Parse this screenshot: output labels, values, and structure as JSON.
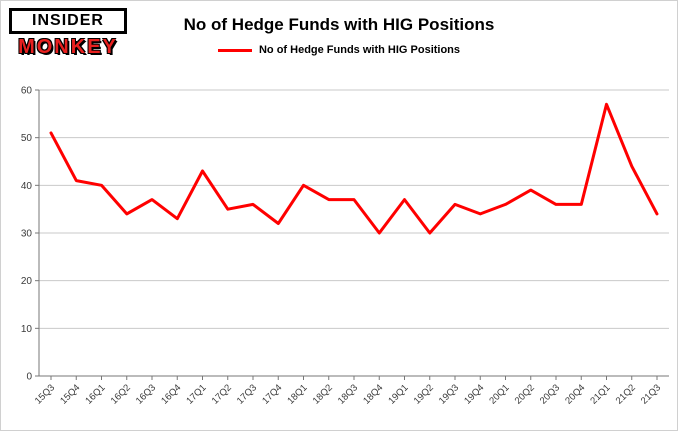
{
  "logo": {
    "line1": "INSIDER",
    "line2": "MONKEY"
  },
  "header": {
    "title": "No of Hedge Funds with HIG Positions"
  },
  "legend": {
    "label": "No of Hedge Funds with HIG Positions"
  },
  "colors": {
    "line": "#ff0000",
    "grid": "#c9c9c9",
    "axis": "#777777",
    "logo_red": "#e8201f"
  },
  "chart_data": {
    "type": "line",
    "title": "No of Hedge Funds with HIG Positions",
    "categories": [
      "15Q3",
      "15Q4",
      "16Q1",
      "16Q2",
      "16Q3",
      "16Q4",
      "17Q1",
      "17Q2",
      "17Q3",
      "17Q4",
      "18Q1",
      "18Q2",
      "18Q3",
      "18Q4",
      "19Q1",
      "19Q2",
      "19Q3",
      "19Q4",
      "20Q1",
      "20Q2",
      "20Q3",
      "20Q4",
      "21Q1",
      "21Q2",
      "21Q3"
    ],
    "values": [
      51,
      41,
      40,
      34,
      37,
      33,
      43,
      35,
      36,
      32,
      40,
      37,
      37,
      30,
      37,
      30,
      36,
      34,
      36,
      39,
      36,
      36,
      57,
      44,
      34
    ],
    "ylim": [
      0,
      60
    ],
    "ytick_step": 10,
    "grid": true,
    "legend_position": "top-center",
    "line_color": "#ff0000"
  }
}
